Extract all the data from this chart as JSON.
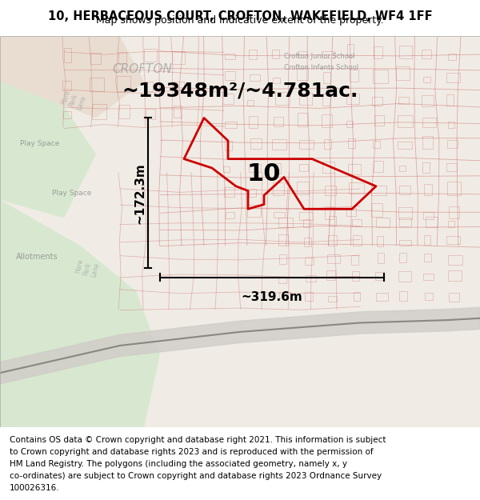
{
  "title_line1": "10, HERBACEOUS COURT, CROFTON, WAKEFIELD, WF4 1FF",
  "title_line2": "Map shows position and indicative extent of the property.",
  "area_text": "~19348m²/~4.781ac.",
  "width_label": "~319.6m",
  "height_label": "~172.3m",
  "plot_number": "10",
  "footer_text": "Contains OS data © Crown copyright and database right 2021. This information is subject to Crown copyright and database rights 2023 and is reproduced with the permission of HM Land Registry. The polygons (including the associated geometry, namely x, y co-ordinates) are subject to Crown copyright and database rights 2023 Ordnance Survey 100026316.",
  "bg_color": "#f5f0eb",
  "map_bg": "#f5f0eb",
  "border_color": "#cccccc",
  "title_fontsize": 10.5,
  "subtitle_fontsize": 9,
  "footer_fontsize": 7.5,
  "area_fontsize": 18,
  "dim_fontsize": 11,
  "plot_num_fontsize": 22,
  "red_color": "#cc0000",
  "black_color": "#111111",
  "footer_bg": "#ffffff"
}
